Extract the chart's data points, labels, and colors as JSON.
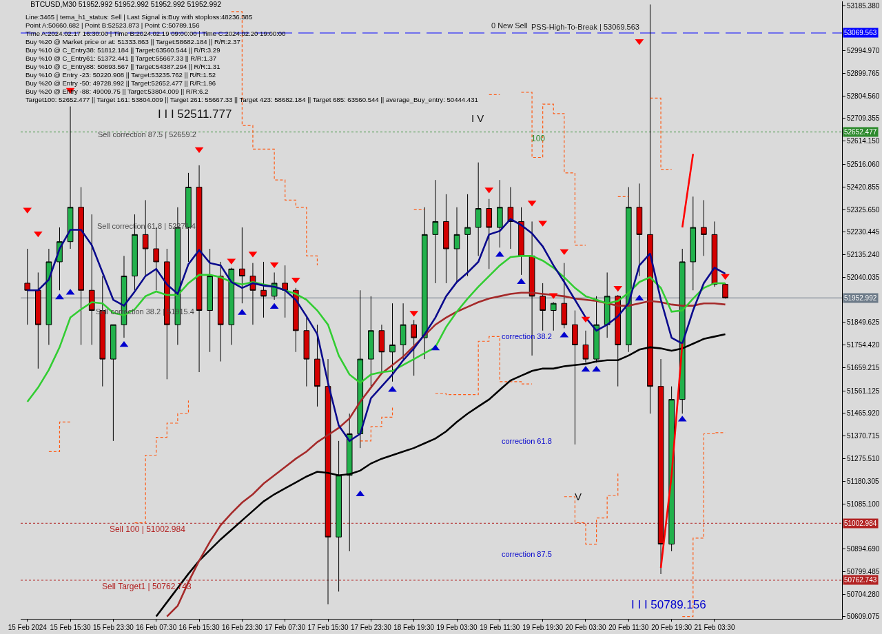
{
  "chart_data": {
    "type": "candlestick",
    "title": "BTCUSD,M30 51952.992 51952.992 51952.992 51952.992",
    "subtitle": "Line:3465 | tema_h1_status: Sell | Last Signal is:Buy with stoploss:48236.385\nPoint A:50660.682 | Point B:52523.873 | Point C:50789.156\nTime A:2024.02.17 16:30:00 | Time B:2024.02.19 09:00:00 | Time C:2024.02.20 19:00:00\nBuy %20 @ Market price or at: 51333.863 || Target:58682.184 || R/R:2.37\nBuy %10 @ C_Entry38: 51812.184 || Target:63560.544 || R/R:3.29\nBuy %10 @ C_Entry61: 51372.441 || Target:55667.33 || R/R:1.37\nBuy %10 @ C_Entry88: 50893.567 || Target:54387.294 || R/R:1.31\nBuy %10 @ Entry -23: 50220.908 || Target:53235.762 || R/R:1.52\nBuy %20 @ Entry -50: 49728.992 || Target:52652.477 || R/R:1.96\nBuy %20 @ Entry -88: 49009.75 || Target:53804.009 || R/R:6.2\nTarget100: 52652.477 || Target 161: 53804.009 || Target 261: 55667.33 || Target 423: 58682.184 || Target 685: 63560.544 || average_Buy_entry: 50444.431",
    "categories": [
      "15 Feb 2024",
      null,
      null,
      null,
      "15 Feb 15:30",
      null,
      null,
      null,
      "15 Feb 23:30",
      null,
      null,
      null,
      "16 Feb 07:30",
      null,
      null,
      null,
      "16 Feb 15:30",
      null,
      null,
      null,
      "16 Feb 23:30",
      null,
      null,
      null,
      "17 Feb 07:30",
      null,
      null,
      null,
      "17 Feb 15:30",
      null,
      null,
      null,
      "17 Feb 23:30",
      null,
      null,
      null,
      "18 Feb 19:30",
      null,
      null,
      null,
      "19 Feb 03:30",
      null,
      null,
      null,
      "19 Feb 11:30",
      null,
      null,
      null,
      "19 Feb 19:30",
      null,
      null,
      null,
      "20 Feb 03:30",
      null,
      null,
      null,
      "20 Feb 11:30",
      null,
      null,
      null,
      "20 Feb 19:30",
      null,
      null,
      null,
      "21 Feb 03:30",
      null
    ],
    "ohlc": [
      [
        52015,
        52160,
        51840,
        51985
      ],
      [
        51985,
        52060,
        51655,
        51840
      ],
      [
        51840,
        52160,
        51755,
        52105
      ],
      [
        52105,
        52250,
        51985,
        52190
      ],
      [
        52190,
        52760,
        52160,
        52335
      ],
      [
        52335,
        52420,
        51755,
        51985
      ],
      [
        51985,
        52305,
        51755,
        51900
      ],
      [
        51900,
        52045,
        51580,
        51695
      ],
      [
        51695,
        51840,
        51350,
        51840
      ],
      [
        51840,
        52130,
        51785,
        52045
      ],
      [
        52045,
        52305,
        51985,
        52220
      ],
      [
        52220,
        52365,
        52045,
        52160
      ],
      [
        52160,
        52250,
        51985,
        52105
      ],
      [
        52105,
        52160,
        51610,
        51840
      ],
      [
        51840,
        52335,
        51755,
        52250
      ],
      [
        52250,
        52480,
        52105,
        52420
      ],
      [
        52420,
        52512,
        51640,
        51900
      ],
      [
        51900,
        52160,
        51725,
        52045
      ],
      [
        52045,
        52105,
        51685,
        51840
      ],
      [
        51840,
        52080,
        51755,
        52075
      ],
      [
        52075,
        52250,
        51930,
        52045
      ],
      [
        52045,
        52100,
        51840,
        51985
      ],
      [
        51985,
        52105,
        51870,
        51960
      ],
      [
        51960,
        52060,
        51945,
        52015
      ],
      [
        52015,
        52090,
        51870,
        51985
      ],
      [
        51985,
        51995,
        51725,
        51815
      ],
      [
        51815,
        51870,
        51580,
        51695
      ],
      [
        51695,
        51840,
        51495,
        51580
      ],
      [
        51580,
        51695,
        50661,
        50945
      ],
      [
        50945,
        51350,
        50715,
        51205
      ],
      [
        51205,
        51465,
        50885,
        51380
      ],
      [
        51380,
        51985,
        51320,
        51695
      ],
      [
        51695,
        51960,
        51580,
        51815
      ],
      [
        51815,
        51840,
        51640,
        51725
      ],
      [
        51725,
        51930,
        51600,
        51755
      ],
      [
        51755,
        51930,
        51695,
        51840
      ],
      [
        51840,
        51860,
        51625,
        51785
      ],
      [
        51785,
        52335,
        51695,
        52220
      ],
      [
        52220,
        52450,
        52015,
        52275
      ],
      [
        52275,
        52390,
        52015,
        52160
      ],
      [
        52160,
        52335,
        52015,
        52220
      ],
      [
        52220,
        52390,
        52045,
        52250
      ],
      [
        52250,
        52524,
        52130,
        52330
      ],
      [
        52330,
        52370,
        52075,
        52250
      ],
      [
        52250,
        52450,
        52165,
        52335
      ],
      [
        52335,
        52420,
        52160,
        52275
      ],
      [
        52275,
        52335,
        52050,
        52130
      ],
      [
        52130,
        52275,
        51710,
        51960
      ],
      [
        51960,
        52015,
        51815,
        51900
      ],
      [
        51900,
        51935,
        51815,
        51930
      ],
      [
        51930,
        52100,
        51825,
        51840
      ],
      [
        51840,
        51900,
        51335,
        51755
      ],
      [
        51755,
        51815,
        51680,
        51695
      ],
      [
        51695,
        51960,
        51680,
        51840
      ],
      [
        51840,
        52060,
        51785,
        51960
      ],
      [
        51960,
        51965,
        51580,
        51755
      ],
      [
        51755,
        52420,
        51725,
        52335
      ],
      [
        52335,
        52435,
        52045,
        52220
      ],
      [
        52220,
        53190,
        51465,
        51580
      ],
      [
        51580,
        51695,
        50789,
        50915
      ],
      [
        50915,
        51580,
        50885,
        51525
      ],
      [
        51525,
        52160,
        51465,
        52105
      ],
      [
        52105,
        52380,
        51985,
        52250
      ],
      [
        52250,
        52365,
        52130,
        52220
      ],
      [
        52220,
        52275,
        52000,
        52010
      ],
      [
        52010,
        52015,
        51950,
        51952.992
      ]
    ],
    "color": "#000000",
    "colors": [
      "#d40000",
      "#d40000",
      "#22b14c",
      "#22b14c",
      "#22b14c",
      "#d40000",
      "#d40000",
      "#d40000",
      "#22b14c",
      "#22b14c",
      "#22b14c",
      "#d40000",
      "#d40000",
      "#d40000",
      "#22b14c",
      "#22b14c",
      "#d40000",
      "#22b14c",
      "#d40000",
      "#22b14c",
      "#d40000",
      "#d40000",
      "#d40000",
      "#22b14c",
      "#d40000",
      "#d40000",
      "#d40000",
      "#d40000",
      "#d40000",
      "#22b14c",
      "#22b14c",
      "#22b14c",
      "#22b14c",
      "#d40000",
      "#22b14c",
      "#22b14c",
      "#d40000",
      "#22b14c",
      "#22b14c",
      "#d40000",
      "#22b14c",
      "#22b14c",
      "#22b14c",
      "#d40000",
      "#22b14c",
      "#d40000",
      "#d40000",
      "#d40000",
      "#d40000",
      "#22b14c",
      "#d40000",
      "#d40000",
      "#d40000",
      "#22b14c",
      "#22b14c",
      "#d40000",
      "#22b14c",
      "#d40000",
      "#d40000",
      "#d40000",
      "#22b14c",
      "#22b14c",
      "#22b14c",
      "#d40000",
      "#d40000",
      "#d40000"
    ],
    "series": [
      {
        "type": "step",
        "color": "#ff5a14",
        "line_style": "dashed",
        "values": [
          null,
          null,
          51305,
          51430,
          51430,
          null,
          null,
          null,
          null,
          null,
          51005,
          51290,
          51365,
          51425,
          51465,
          51520,
          null,
          null,
          null,
          null,
          null,
          null,
          null,
          null,
          null,
          null,
          null,
          null,
          null,
          null,
          null,
          51350,
          51410,
          51450,
          51495,
          null,
          null,
          null,
          51550,
          51545,
          51545,
          51545,
          51770,
          51790,
          51600,
          51600,
          51590,
          51590,
          null,
          null,
          51115,
          51005,
          50915,
          51025,
          51120,
          51215,
          null,
          null,
          null,
          null,
          null,
          50610,
          50940,
          51380,
          51385,
          51385
        ]
      },
      {
        "type": "step",
        "color": "#ff5a14",
        "line_style": "dashed",
        "values": [
          null,
          null,
          null,
          null,
          null,
          null,
          null,
          null,
          null,
          null,
          null,
          null,
          null,
          null,
          null,
          null,
          null,
          null,
          null,
          53160,
          52680,
          52580,
          52580,
          52450,
          52365,
          52335,
          52130,
          52090,
          null,
          null,
          null,
          null,
          null,
          null,
          null,
          null,
          52325,
          52325,
          null,
          null,
          null,
          null,
          null,
          52810,
          52810,
          null,
          52820,
          52545,
          52770,
          52730,
          52480,
          52175,
          52175,
          null,
          null,
          52380,
          52380,
          null,
          52795,
          52495,
          52495,
          null,
          null,
          null,
          null,
          null
        ]
      },
      {
        "type": "line",
        "color": "#000000",
        "values": [
          null,
          null,
          null,
          null,
          null,
          null,
          null,
          null,
          null,
          null,
          null,
          null,
          50610,
          50670,
          50730,
          50790,
          50845,
          50890,
          50935,
          50975,
          51015,
          51055,
          51095,
          51125,
          51150,
          51175,
          51200,
          51220,
          51215,
          51205,
          51210,
          51225,
          51255,
          51275,
          51290,
          51305,
          51320,
          51340,
          51360,
          51390,
          51430,
          51465,
          51495,
          51525,
          51565,
          51605,
          51625,
          51645,
          51655,
          51655,
          51665,
          51670,
          51675,
          51685,
          51690,
          51690,
          51710,
          51735,
          51745,
          51740,
          51730,
          51740,
          51760,
          51780,
          51790,
          51800
        ]
      },
      {
        "type": "line",
        "color": "#a52a2a",
        "values": [
          null,
          null,
          null,
          null,
          null,
          null,
          null,
          null,
          null,
          null,
          null,
          null,
          null,
          50610,
          50655,
          50755,
          50845,
          50925,
          50995,
          51045,
          51090,
          51125,
          51170,
          51205,
          51240,
          51275,
          51305,
          51345,
          51375,
          51405,
          51445,
          51515,
          51575,
          51635,
          51670,
          51705,
          51750,
          51795,
          51840,
          51870,
          51895,
          51915,
          51935,
          51950,
          51960,
          51970,
          51975,
          51975,
          51970,
          51965,
          51960,
          51950,
          51945,
          51940,
          51930,
          51920,
          51920,
          51930,
          51940,
          51935,
          51925,
          51920,
          51920,
          51930,
          51930,
          51925
        ]
      },
      {
        "type": "line",
        "color": "#32cd32",
        "values": [
          51515,
          51575,
          51650,
          51745,
          51870,
          51905,
          51935,
          51930,
          51890,
          51880,
          51905,
          51960,
          51980,
          51965,
          51965,
          52015,
          52050,
          52050,
          52040,
          52020,
          52010,
          52020,
          52010,
          52000,
          51985,
          51970,
          51945,
          51900,
          51840,
          51710,
          51630,
          51595,
          51630,
          51640,
          51645,
          51670,
          51695,
          51720,
          51745,
          51830,
          51895,
          51950,
          52000,
          52045,
          52090,
          52125,
          52130,
          52130,
          52110,
          52080,
          52040,
          51995,
          51960,
          51945,
          51930,
          51940,
          51975,
          52020,
          52040,
          51995,
          51895,
          51900,
          51950,
          51995,
          52015,
          52015
        ]
      },
      {
        "type": "line",
        "color": "#0a0a8c",
        "values": [
          51985,
          51985,
          52030,
          52160,
          52240,
          52240,
          52175,
          52060,
          51945,
          51920,
          51980,
          52045,
          52075,
          52010,
          51970,
          52095,
          52155,
          52100,
          52090,
          52020,
          51995,
          52015,
          52005,
          52000,
          51985,
          51945,
          51875,
          51800,
          51595,
          51415,
          51350,
          51380,
          51530,
          51580,
          51630,
          51690,
          51740,
          51800,
          51870,
          51960,
          52020,
          52060,
          52105,
          52220,
          52235,
          52285,
          52260,
          52225,
          52170,
          52090,
          52020,
          51945,
          51870,
          51815,
          51840,
          51875,
          51930,
          52090,
          52140,
          51945,
          51785,
          51760,
          51900,
          52015,
          52080,
          52055
        ]
      },
      {
        "type": "line",
        "color": "#ff0000",
        "values": [
          null,
          null,
          null,
          null,
          null,
          null,
          null,
          null,
          null,
          null,
          null,
          null,
          null,
          null,
          null,
          null,
          null,
          null,
          null,
          null,
          null,
          null,
          null,
          null,
          null,
          null,
          null,
          null,
          null,
          null,
          null,
          null,
          null,
          null,
          null,
          null,
          null,
          null,
          null,
          null,
          null,
          null,
          null,
          null,
          null,
          null,
          null,
          null,
          null,
          null,
          null,
          null,
          null,
          null,
          null,
          null,
          null,
          null,
          null,
          50815,
          51205,
          51760,
          null,
          null,
          null,
          null
        ]
      },
      {
        "type": "line",
        "color": "#ff0000",
        "values": [
          null,
          null,
          null,
          null,
          null,
          null,
          null,
          null,
          null,
          null,
          null,
          null,
          null,
          null,
          null,
          null,
          null,
          null,
          null,
          null,
          null,
          null,
          null,
          null,
          null,
          null,
          null,
          null,
          null,
          null,
          null,
          null,
          null,
          null,
          null,
          null,
          null,
          null,
          null,
          null,
          null,
          null,
          null,
          null,
          null,
          null,
          null,
          null,
          null,
          null,
          null,
          null,
          null,
          null,
          null,
          null,
          null,
          null,
          null,
          null,
          null,
          52250,
          52560,
          null,
          null,
          null
        ]
      },
      {
        "type": "scatter",
        "color": "#ff0000",
        "marker": "triangle",
        "values": [
          52325,
          52225,
          null,
          null,
          52830,
          null,
          null,
          null,
          null,
          null,
          null,
          null,
          null,
          null,
          null,
          null,
          52580,
          null,
          null,
          52110,
          null,
          52140,
          null,
          52095,
          null,
          52030,
          null,
          null,
          null,
          null,
          null,
          null,
          null,
          null,
          null,
          null,
          51890,
          null,
          null,
          null,
          null,
          null,
          null,
          52410,
          null,
          null,
          null,
          52355,
          52270,
          51965,
          52150,
          null,
          51865,
          null,
          null,
          51995,
          null,
          53035,
          null,
          null,
          null,
          null,
          null,
          null,
          null,
          52045
        ]
      },
      {
        "type": "scatter",
        "color": "#0000cd",
        "marker": "triangle",
        "values": [
          null,
          null,
          null,
          51955,
          51975,
          null,
          null,
          null,
          null,
          51755,
          null,
          null,
          null,
          null,
          null,
          null,
          null,
          null,
          null,
          null,
          51890,
          null,
          null,
          51915,
          null,
          null,
          null,
          null,
          null,
          null,
          null,
          51125,
          null,
          null,
          51565,
          null,
          null,
          null,
          51740,
          null,
          null,
          null,
          null,
          null,
          52135,
          null,
          52020,
          null,
          null,
          null,
          51795,
          null,
          51650,
          51650,
          null,
          null,
          null,
          51950,
          null,
          null,
          null,
          51440,
          null,
          null,
          null,
          null
        ]
      }
    ],
    "ylim": [
      50600,
      53203
    ],
    "yticks": [
      {
        "value": 53185.38,
        "label": "53185.380"
      },
      {
        "value": 52994.97,
        "label": "52994.970"
      },
      {
        "value": 52899.765,
        "label": "52899.765"
      },
      {
        "value": 52804.56,
        "label": "52804.560"
      },
      {
        "value": 52709.355,
        "label": "52709.355"
      },
      {
        "value": 52614.15,
        "label": "52614.150"
      },
      {
        "value": 52516.06,
        "label": "52516.060"
      },
      {
        "value": 52420.855,
        "label": "52420.855"
      },
      {
        "value": 52325.65,
        "label": "52325.650"
      },
      {
        "value": 52230.445,
        "label": "52230.445"
      },
      {
        "value": 52135.24,
        "label": "52135.240"
      },
      {
        "value": 52040.035,
        "label": "52040.035"
      },
      {
        "value": 51849.625,
        "label": "51849.625"
      },
      {
        "value": 51754.42,
        "label": "51754.420"
      },
      {
        "value": 51659.215,
        "label": "51659.215"
      },
      {
        "value": 51561.125,
        "label": "51561.125"
      },
      {
        "value": 51465.92,
        "label": "51465.920"
      },
      {
        "value": 51370.715,
        "label": "51370.715"
      },
      {
        "value": 51275.51,
        "label": "51275.510"
      },
      {
        "value": 51180.305,
        "label": "51180.305"
      },
      {
        "value": 51085.1,
        "label": "51085.100"
      },
      {
        "value": 50894.69,
        "label": "50894.690"
      },
      {
        "value": 50799.485,
        "label": "50799.485"
      },
      {
        "value": 50704.28,
        "label": "50704.280"
      },
      {
        "value": 50609.075,
        "label": "50609.075"
      }
    ],
    "ref_lines": [
      {
        "axis": "y",
        "value": 53069.563,
        "label": "53069.563",
        "color": "#0000ff",
        "line_style": "dashed"
      },
      {
        "axis": "y",
        "value": 52652.477,
        "label": "52652.477",
        "color": "#2e8b2e",
        "line_style": "dotted"
      },
      {
        "axis": "y",
        "value": 51952.992,
        "label": "51952.992",
        "color": "#6c7a88",
        "line_style": "solid"
      },
      {
        "axis": "y",
        "value": 51002.984,
        "label": "51002.984",
        "color": "#b22222",
        "line_style": "dotted"
      },
      {
        "axis": "y",
        "value": 50762.743,
        "label": "50762.743",
        "color": "#b22222",
        "line_style": "dotted"
      }
    ],
    "annotations": [
      {
        "text": "PSS-High-To-Break | 53069.563",
        "y": 53069.563
      },
      "0 New Sell",
      "I I I 52511.777",
      "Sell correction 87.5 | 52659.2",
      "Sell correction 61.8 | 52271.4",
      "Sell correction 38.2 | 51915.4",
      {
        "text": "Sell 100 | 51002.984",
        "y": 51002.984
      },
      {
        "text": "Sell Target1 | 50762.743",
        "y": 50762.743
      },
      "I V",
      {
        "text": "100",
        "y": 52652.477
      },
      "correction 38.2",
      "correction 61.8",
      "correction 87.5",
      "V",
      "I I I 50789.156"
    ]
  }
}
